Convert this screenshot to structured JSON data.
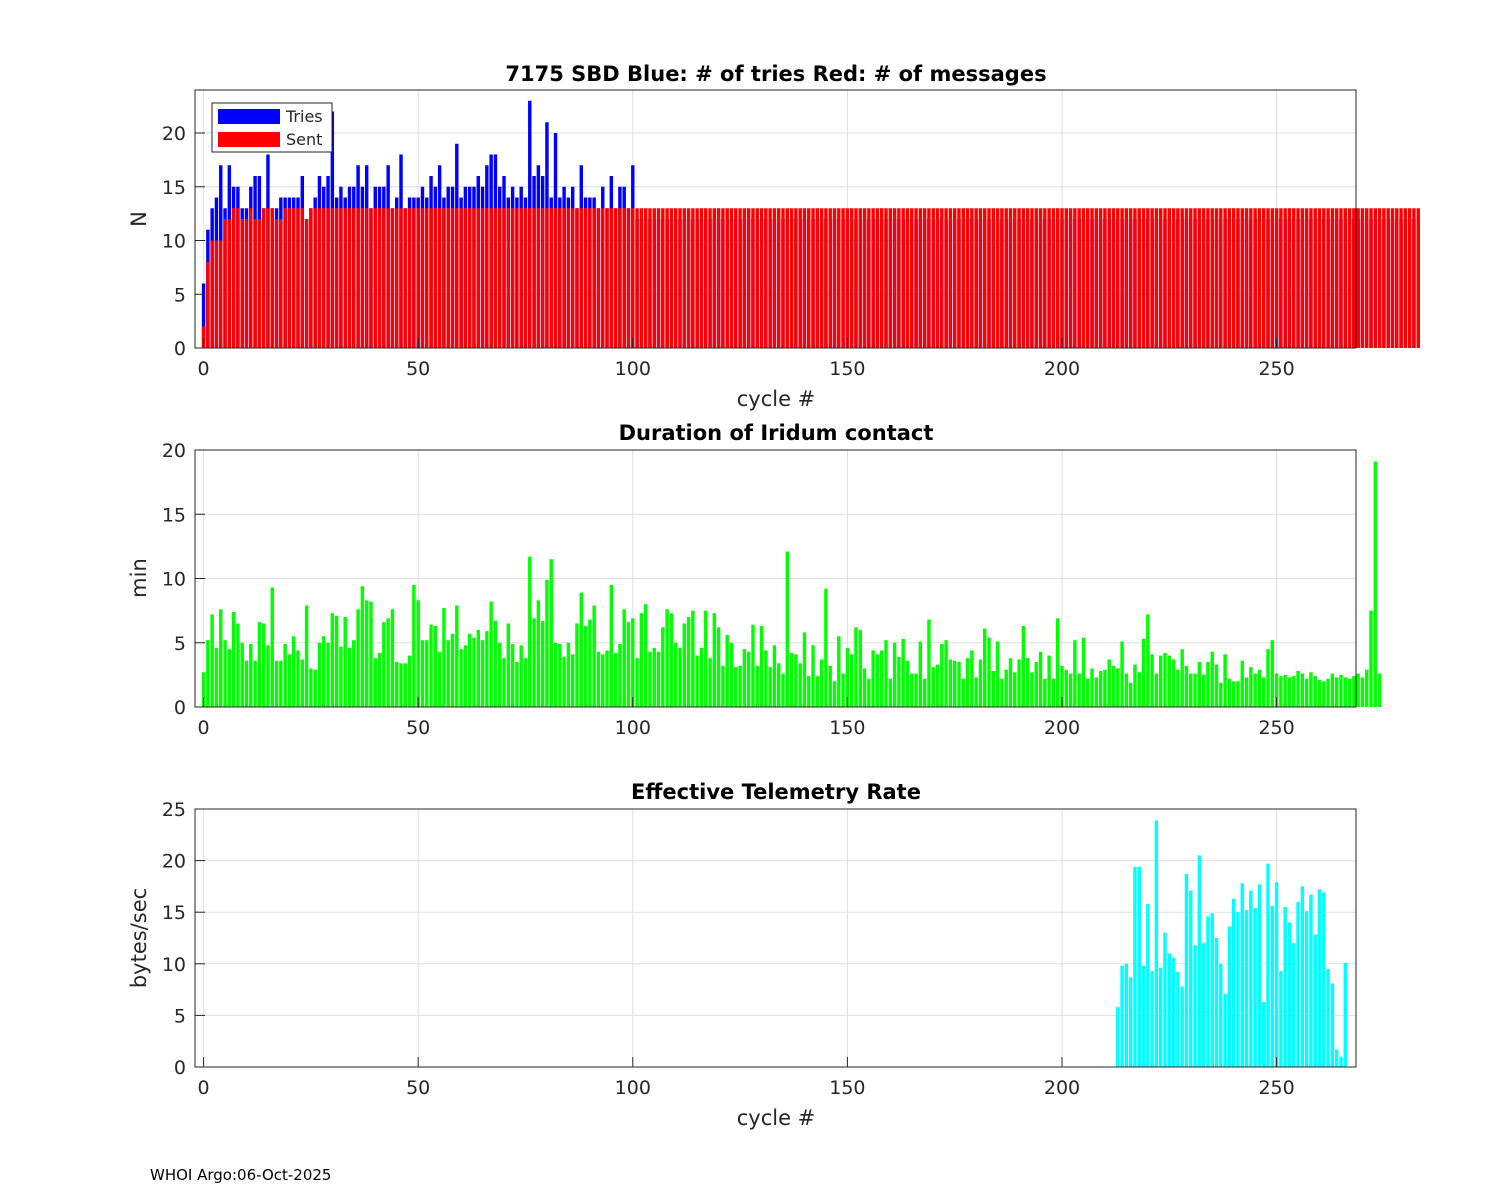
{
  "footer": "WHOI Argo:06-Oct-2025",
  "colors": {
    "tries": "#0000ff",
    "sent": "#ff0000",
    "duration": "#00ff00",
    "rate": "#00ffff",
    "grid": "#dfdfdf",
    "axis": "#262626"
  },
  "chart_data": [
    {
      "type": "bar",
      "title": "7175 SBD  Blue: # of tries   Red: # of messages",
      "xlabel": "cycle #",
      "ylabel": "N",
      "xlim": [
        -2,
        268.5
      ],
      "ylim": [
        0,
        24
      ],
      "xticks": [
        0,
        50,
        100,
        150,
        200,
        250
      ],
      "yticks": [
        0,
        5,
        10,
        15,
        20
      ],
      "grid": true,
      "legend": {
        "position": "top-left",
        "entries": [
          "Tries",
          "Sent"
        ]
      },
      "x_start": 0,
      "series": [
        {
          "name": "Tries",
          "values": [
            6,
            11,
            13,
            14,
            17,
            13,
            17,
            15,
            15,
            13,
            13,
            15,
            16,
            16,
            13,
            18,
            13,
            13,
            14,
            14,
            14,
            14,
            14,
            16,
            12,
            13,
            14,
            16,
            15,
            16,
            22,
            14,
            15,
            14,
            15,
            15,
            17,
            15,
            17,
            13,
            15,
            15,
            15,
            17,
            13,
            14,
            18,
            13,
            14,
            14,
            14,
            15,
            14,
            16,
            15,
            17,
            14,
            15,
            15,
            19,
            14,
            15,
            15,
            15,
            16,
            15,
            17,
            18,
            18,
            15,
            16,
            14,
            15,
            14,
            15,
            14,
            23,
            16,
            17,
            16,
            21,
            14,
            20,
            14,
            15,
            14,
            15,
            13,
            17,
            14,
            14,
            14,
            13,
            15,
            13,
            16,
            13,
            15,
            15,
            13,
            17,
            12,
            12,
            12,
            12,
            12,
            12,
            12,
            12,
            12,
            12,
            12,
            12,
            12,
            12,
            12,
            12,
            12,
            12,
            12,
            12,
            12,
            12,
            12,
            12,
            12,
            12,
            12,
            12,
            12,
            12,
            12,
            12,
            12,
            12,
            12,
            12,
            12,
            12,
            12,
            12,
            12,
            12,
            12,
            12,
            12,
            12,
            12,
            12,
            12,
            12,
            12,
            12,
            12,
            12,
            12,
            12,
            12,
            12,
            12,
            12,
            12,
            12,
            12,
            12,
            12,
            12,
            12,
            12,
            12,
            12,
            12,
            12,
            12,
            12,
            12,
            12,
            12,
            12,
            12,
            12,
            12,
            12,
            12,
            12,
            12,
            12,
            12,
            12,
            12,
            12,
            12,
            12,
            12,
            12,
            12,
            12,
            12,
            12,
            12,
            12,
            12,
            12,
            12,
            12,
            12,
            12,
            12,
            12,
            12,
            12,
            12,
            12,
            12,
            12,
            12,
            12,
            12,
            12,
            12,
            12,
            12,
            12,
            12,
            12,
            12,
            12,
            12,
            12,
            12,
            12,
            12,
            12,
            12,
            12,
            12,
            12,
            12,
            12,
            12,
            12,
            12,
            12,
            12,
            12,
            12,
            12,
            12,
            12,
            12,
            12,
            12,
            12,
            12,
            12,
            12,
            12,
            12,
            12,
            12,
            12,
            12,
            12,
            12,
            12,
            12,
            12,
            12,
            12,
            12,
            12,
            12,
            12,
            12,
            12,
            12,
            12,
            12,
            12,
            12,
            12,
            12,
            12,
            12
          ]
        },
        {
          "name": "Sent",
          "values": [
            2,
            8,
            10,
            10,
            10,
            12,
            12,
            13,
            13,
            12,
            12,
            13,
            12,
            12,
            13,
            13,
            13,
            12,
            12,
            13,
            13,
            13,
            13,
            13,
            12,
            13,
            13,
            13,
            13,
            13,
            13,
            13,
            13,
            13,
            13,
            13,
            13,
            13,
            13,
            13,
            13,
            13,
            13,
            13,
            13,
            13,
            13,
            13,
            13,
            13,
            13,
            13,
            13,
            13,
            13,
            13,
            13,
            13,
            13,
            13,
            13,
            13,
            13,
            13,
            13,
            13,
            13,
            13,
            13,
            13,
            13,
            13,
            13,
            13,
            13,
            13,
            13,
            13,
            13,
            13,
            13,
            13,
            13,
            13,
            13,
            13,
            13,
            13,
            13,
            13,
            13,
            13,
            13,
            13,
            13,
            13,
            13,
            13,
            13,
            13,
            13,
            13,
            13,
            13,
            13,
            13,
            13,
            13,
            13,
            13,
            13,
            13,
            13,
            13,
            13,
            13,
            13,
            13,
            13,
            13,
            13,
            13,
            13,
            13,
            13,
            13,
            13,
            13,
            13,
            13,
            13,
            13,
            13,
            13,
            13,
            13,
            13,
            13,
            13,
            13,
            13,
            13,
            13,
            13,
            13,
            13,
            13,
            13,
            13,
            13,
            13,
            13,
            13,
            13,
            13,
            13,
            13,
            13,
            13,
            13,
            13,
            13,
            13,
            13,
            13,
            13,
            13,
            13,
            13,
            13,
            13,
            13,
            13,
            13,
            13,
            13,
            13,
            13,
            13,
            13,
            13,
            13,
            13,
            13,
            13,
            13,
            13,
            13,
            13,
            13,
            13,
            13,
            13,
            13,
            13,
            13,
            13,
            13,
            13,
            13,
            13,
            13,
            13,
            13,
            13,
            13,
            13,
            13,
            13,
            13,
            13,
            13,
            13,
            13,
            13,
            13,
            13,
            13,
            13,
            13,
            13,
            13,
            13,
            13,
            13,
            13,
            13,
            13,
            13,
            13,
            13,
            13,
            13,
            13,
            13,
            13,
            13,
            13,
            13,
            13,
            13,
            13,
            13,
            13,
            13,
            13,
            13,
            13,
            13,
            13,
            13,
            13,
            13,
            13,
            13,
            13,
            13,
            13,
            13,
            13,
            13,
            13,
            13,
            13,
            13,
            13,
            13,
            13,
            13,
            13,
            13,
            13,
            13,
            13,
            13,
            13,
            13,
            13,
            13,
            13,
            13,
            13,
            13,
            13
          ]
        }
      ]
    },
    {
      "type": "bar",
      "title": "Duration of Iridum contact",
      "xlabel": "",
      "ylabel": "min",
      "xlim": [
        -2,
        268.5
      ],
      "ylim": [
        0,
        20
      ],
      "xticks": [
        0,
        50,
        100,
        150,
        200,
        250
      ],
      "yticks": [
        0,
        5,
        10,
        15,
        20
      ],
      "grid": true,
      "x_start": 0,
      "series": [
        {
          "name": "Duration",
          "values": [
            2.7,
            5.2,
            7.2,
            4.6,
            7.6,
            5.2,
            4.5,
            7.4,
            6.5,
            5.0,
            3.6,
            4.9,
            3.6,
            6.6,
            6.5,
            4.8,
            9.3,
            3.6,
            3.6,
            4.9,
            4.1,
            5.5,
            4.4,
            3.7,
            7.9,
            3.0,
            2.9,
            5.0,
            5.5,
            5.0,
            7.3,
            7.1,
            4.7,
            7.0,
            4.6,
            5.2,
            7.6,
            9.4,
            8.3,
            8.2,
            3.8,
            4.2,
            6.6,
            6.9,
            7.6,
            3.5,
            3.4,
            3.4,
            4.0,
            9.5,
            8.3,
            5.2,
            5.2,
            6.4,
            6.3,
            4.3,
            7.7,
            5.2,
            5.7,
            7.9,
            4.5,
            4.8,
            5.7,
            5.4,
            6.0,
            5.2,
            5.9,
            8.2,
            6.7,
            5.0,
            3.8,
            6.5,
            4.9,
            3.5,
            4.8,
            3.8,
            11.7,
            6.9,
            8.3,
            6.7,
            9.9,
            11.5,
            5.0,
            4.9,
            3.9,
            5.0,
            4.1,
            6.5,
            8.9,
            6.3,
            6.8,
            7.9,
            4.3,
            4.1,
            4.4,
            9.5,
            4.2,
            4.9,
            7.6,
            6.6,
            6.9,
            3.8,
            7.3,
            8.0,
            4.3,
            4.6,
            4.3,
            6.2,
            7.6,
            7.3,
            5.0,
            4.6,
            6.5,
            7.0,
            7.5,
            4.0,
            4.6,
            7.5,
            3.8,
            7.3,
            6.2,
            3.2,
            5.6,
            5.0,
            3.1,
            3.2,
            4.5,
            4.3,
            6.4,
            3.2,
            6.3,
            4.4,
            3.1,
            4.8,
            3.4,
            2.6,
            12.1,
            4.2,
            4.1,
            3.4,
            5.8,
            2.4,
            4.8,
            2.4,
            3.7,
            9.2,
            3.2,
            2.0,
            5.5,
            2.6,
            4.6,
            4.1,
            6.2,
            6.0,
            3.0,
            2.2,
            4.4,
            4.1,
            4.4,
            5.2,
            2.2,
            5.0,
            3.9,
            5.3,
            3.6,
            2.6,
            2.6,
            5.1,
            2.2,
            6.8,
            3.1,
            3.3,
            4.9,
            5.2,
            3.7,
            3.6,
            3.5,
            2.2,
            3.8,
            4.4,
            2.3,
            3.7,
            6.1,
            5.4,
            2.8,
            5.1,
            2.2,
            2.9,
            3.8,
            2.7,
            3.7,
            6.3,
            3.8,
            2.7,
            3.5,
            4.3,
            2.2,
            4.0,
            2.2,
            6.9,
            3.2,
            2.9,
            2.6,
            5.2,
            2.6,
            5.4,
            2.2,
            3.0,
            2.3,
            2.8,
            2.9,
            3.7,
            3.2,
            3.0,
            5.1,
            2.6,
            1.9,
            3.3,
            2.7,
            5.3,
            7.2,
            4.1,
            2.6,
            4.0,
            4.2,
            4.0,
            3.7,
            2.9,
            4.5,
            3.2,
            2.6,
            2.6,
            3.5,
            2.5,
            3.5,
            4.3,
            3.3,
            1.9,
            4.1,
            2.2,
            2.0,
            2.0,
            3.6,
            2.3,
            3.1,
            2.6,
            2.9,
            2.3,
            4.5,
            5.2,
            2.6,
            2.4,
            2.5,
            2.3,
            2.4,
            2.8,
            2.6,
            2.2,
            2.7,
            2.4,
            2.1,
            2.0,
            2.2,
            2.6,
            2.3,
            2.5,
            2.3,
            2.2,
            2.4,
            2.6,
            2.3,
            2.9,
            7.5,
            19.1,
            2.6
          ]
        }
      ]
    },
    {
      "type": "bar",
      "title": "Effective Telemetry Rate",
      "xlabel": "cycle #",
      "ylabel": "bytes/sec",
      "xlim": [
        -2,
        268.5
      ],
      "ylim": [
        0,
        25
      ],
      "xticks": [
        0,
        50,
        100,
        150,
        200,
        250
      ],
      "yticks": [
        0,
        5,
        10,
        15,
        20,
        25
      ],
      "grid": true,
      "x_start": 213,
      "series": [
        {
          "name": "Rate",
          "values": [
            5.8,
            9.8,
            10.0,
            8.7,
            19.4,
            19.4,
            9.8,
            15.8,
            9.3,
            23.9,
            9.6,
            13.0,
            11.0,
            10.6,
            9.2,
            7.8,
            18.7,
            17.1,
            11.8,
            20.5,
            12.0,
            14.6,
            14.9,
            12.5,
            10.0,
            7.1,
            13.6,
            16.3,
            15.0,
            17.8,
            15.2,
            17.1,
            15.4,
            17.7,
            6.3,
            19.7,
            15.6,
            17.9,
            9.3,
            15.5,
            14.0,
            12.0,
            16.0,
            17.5,
            15.1,
            16.7,
            12.8,
            17.2,
            16.9,
            9.5,
            8.1,
            1.7,
            1.0,
            10.1
          ]
        }
      ]
    }
  ]
}
